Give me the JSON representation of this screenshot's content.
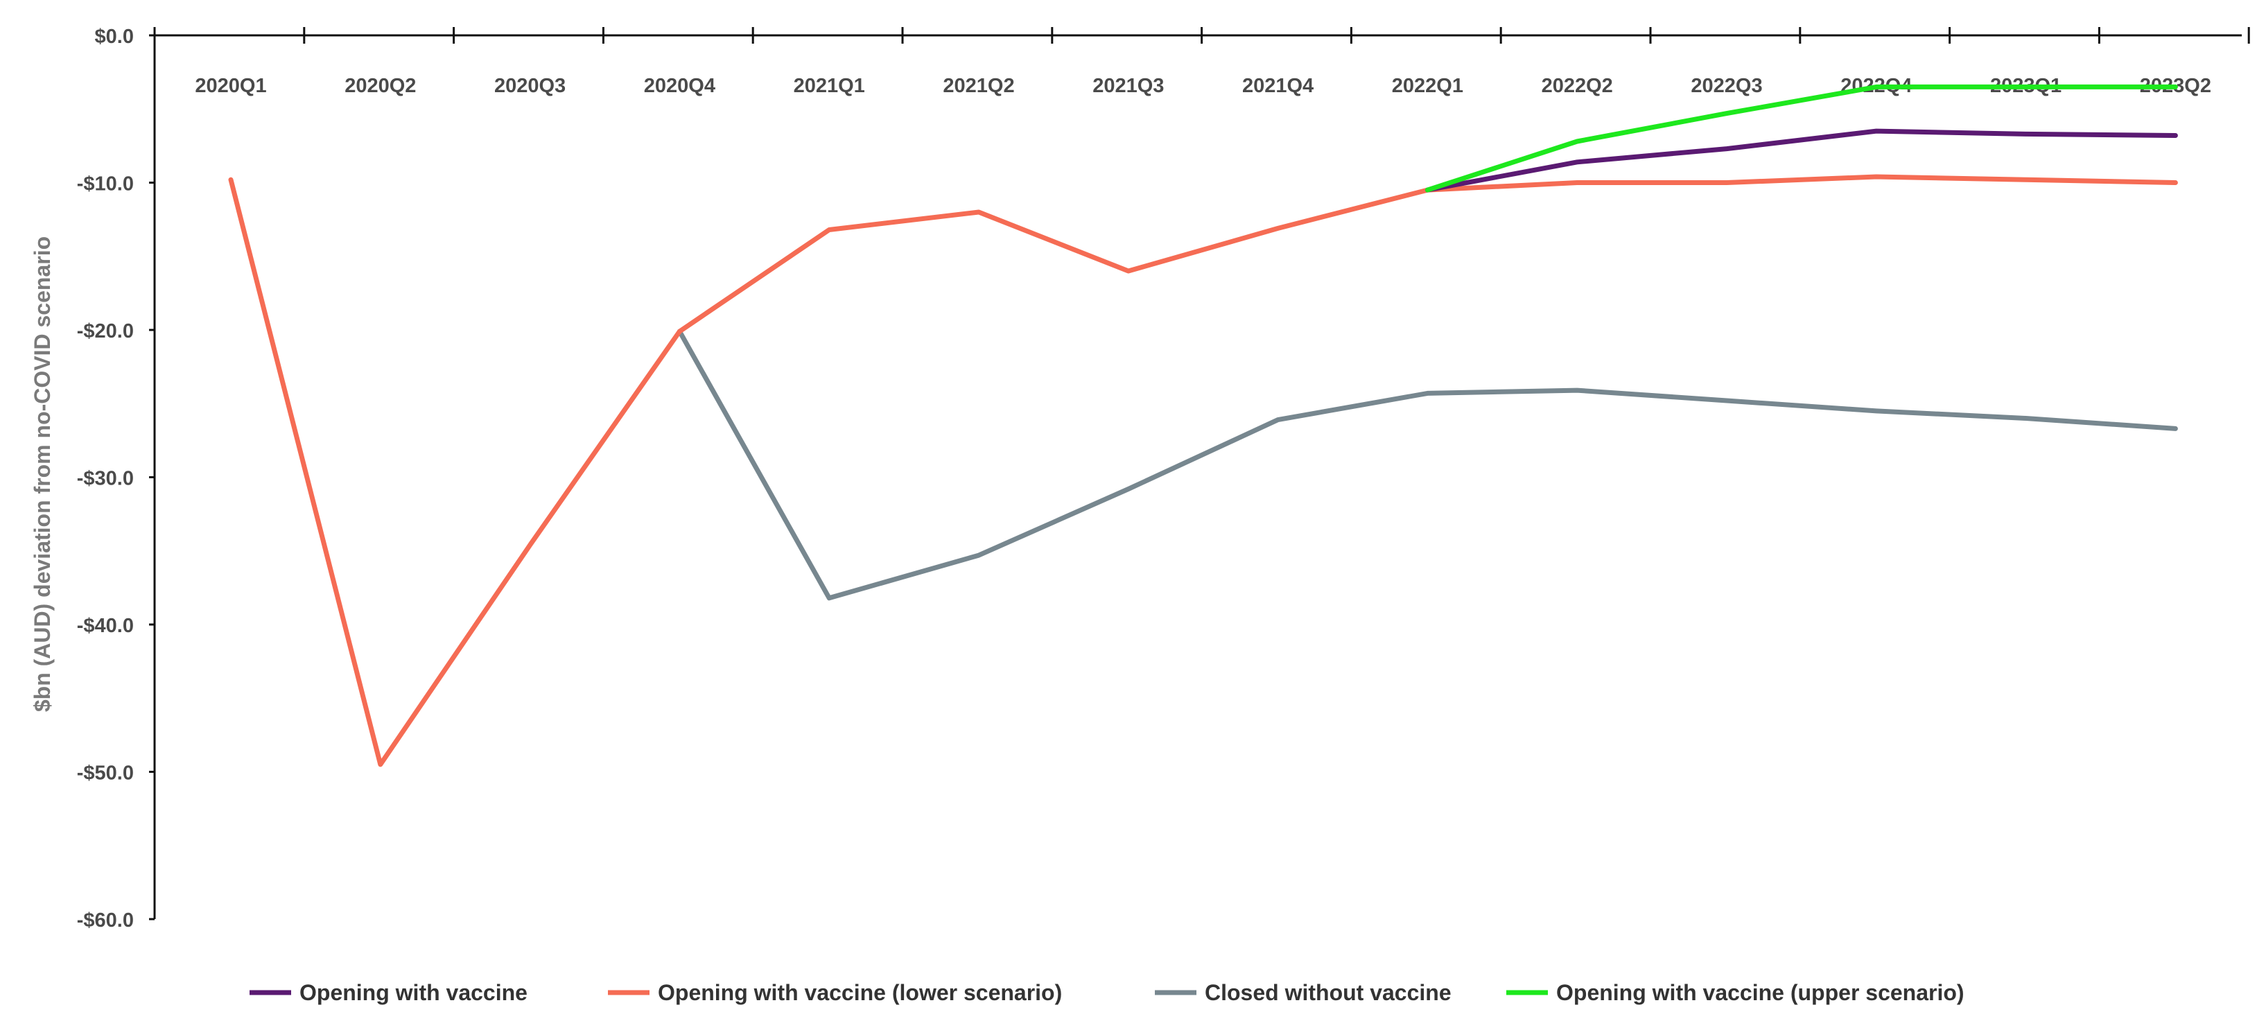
{
  "chart_data": {
    "type": "line",
    "title": "",
    "xlabel": "",
    "ylabel": "$bn (AUD) deviation from no-COVID scenario",
    "categories": [
      "2020Q1",
      "2020Q2",
      "2020Q3",
      "2020Q4",
      "2021Q1",
      "2021Q2",
      "2021Q3",
      "2021Q4",
      "2022Q1",
      "2022Q2",
      "2022Q3",
      "2022Q4",
      "2023Q1",
      "2023Q2"
    ],
    "yticks": [
      "$0.0",
      "-$10.0",
      "-$20.0",
      "-$30.0",
      "-$40.0",
      "-$50.0",
      "-$60.0"
    ],
    "ylim": [
      -60,
      0
    ],
    "x_axis_position": "top",
    "legend_position": "bottom",
    "grid": false,
    "series": [
      {
        "name": "Closed without vaccine",
        "color": "#77878f",
        "values": [
          null,
          null,
          null,
          -20.1,
          -38.2,
          -35.3,
          -30.8,
          -26.1,
          -24.3,
          -24.1,
          -24.8,
          -25.5,
          -26.0,
          -26.7
        ]
      },
      {
        "name": "Opening with vaccine (lower scenario)",
        "color": "#f56c54",
        "values": [
          -9.8,
          -49.5,
          -34.6,
          -20.1,
          -13.2,
          -12.0,
          -16.0,
          -13.1,
          -10.5,
          -10.0,
          -10.0,
          -9.6,
          -9.8,
          -10.0
        ]
      },
      {
        "name": "Opening with vaccine",
        "color": "#5a1a72",
        "values": [
          null,
          null,
          null,
          null,
          null,
          null,
          null,
          null,
          -10.5,
          -8.6,
          -7.7,
          -6.5,
          -6.7,
          -6.8
        ]
      },
      {
        "name": "Opening with vaccine (upper scenario)",
        "color": "#1de81d",
        "values": [
          null,
          null,
          null,
          null,
          null,
          null,
          null,
          null,
          -10.5,
          -7.2,
          -5.3,
          -3.5,
          -3.5,
          -3.5
        ]
      }
    ],
    "legend_order": [
      "Opening with vaccine",
      "Opening with vaccine (lower scenario)",
      "Closed without vaccine",
      "Opening with vaccine (upper scenario)"
    ]
  }
}
